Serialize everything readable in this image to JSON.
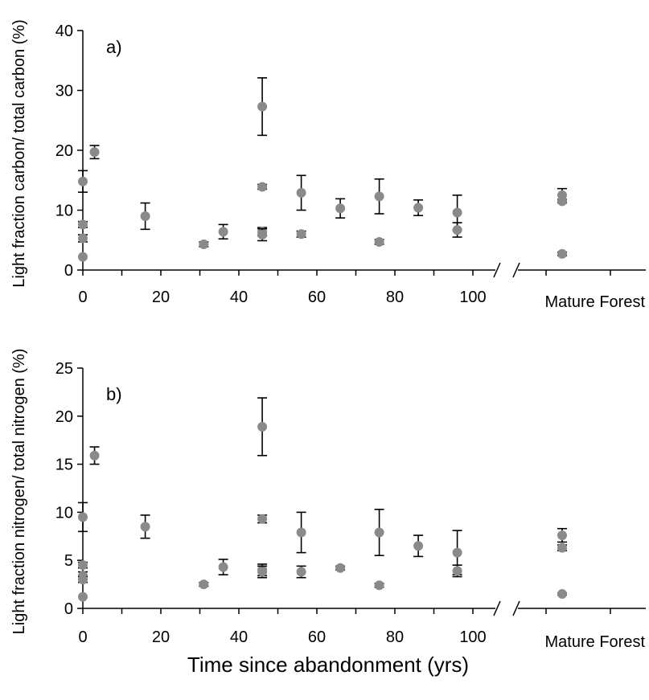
{
  "figure": {
    "xlabel": "Time since abandonment (yrs)",
    "mature_label": "Mature Forest"
  },
  "chart_data": [
    {
      "type": "scatter",
      "panel_label": "a)",
      "ylabel": "Light fraction carbon/ total carbon (%)",
      "xlim": [
        0,
        105
      ],
      "ylim": [
        0,
        40
      ],
      "x_ticks": [
        0,
        20,
        40,
        60,
        80,
        100
      ],
      "y_ticks": [
        0,
        10,
        20,
        30,
        40
      ],
      "grid": false,
      "marker_color": "#8a8a8a",
      "points": [
        {
          "x": 0,
          "y": 14.8,
          "err": 1.8
        },
        {
          "x": 0,
          "y": 7.6,
          "err": 0.5
        },
        {
          "x": 0,
          "y": 5.3,
          "err": 0.6
        },
        {
          "x": 0,
          "y": 2.2,
          "err": 0
        },
        {
          "x": 3,
          "y": 19.7,
          "err": 1.1
        },
        {
          "x": 16,
          "y": 9.0,
          "err": 2.2
        },
        {
          "x": 31,
          "y": 4.3,
          "err": 0.4
        },
        {
          "x": 36,
          "y": 6.4,
          "err": 1.2
        },
        {
          "x": 46,
          "y": 27.3,
          "err": 4.8
        },
        {
          "x": 46,
          "y": 13.9,
          "err": 0.4
        },
        {
          "x": 46,
          "y": 6.4,
          "err": 0.7
        },
        {
          "x": 46,
          "y": 5.9,
          "err": 1.0
        },
        {
          "x": 56,
          "y": 12.9,
          "err": 2.9
        },
        {
          "x": 56,
          "y": 6.0,
          "err": 0.5
        },
        {
          "x": 66,
          "y": 10.3,
          "err": 1.6
        },
        {
          "x": 76,
          "y": 12.3,
          "err": 2.9
        },
        {
          "x": 76,
          "y": 4.7,
          "err": 0.4
        },
        {
          "x": 86,
          "y": 10.4,
          "err": 1.3
        },
        {
          "x": 96,
          "y": 9.6,
          "err": 2.9
        },
        {
          "x": 96,
          "y": 6.7,
          "err": 1.2
        }
      ],
      "mature_points": [
        {
          "y": 12.5,
          "err": 1.1
        },
        {
          "y": 11.5,
          "err": 0.3
        },
        {
          "y": 2.7,
          "err": 0.3
        }
      ]
    },
    {
      "type": "scatter",
      "panel_label": "b)",
      "ylabel": "Light fraction nitrogen/ total nitrogen (%)",
      "xlim": [
        0,
        105
      ],
      "ylim": [
        0,
        25
      ],
      "x_ticks": [
        0,
        20,
        40,
        60,
        80,
        100
      ],
      "y_ticks": [
        0,
        5,
        10,
        15,
        20,
        25
      ],
      "grid": false,
      "marker_color": "#8a8a8a",
      "points": [
        {
          "x": 0,
          "y": 9.5,
          "err": 1.5
        },
        {
          "x": 0,
          "y": 4.5,
          "err": 0.3
        },
        {
          "x": 0,
          "y": 3.4,
          "err": 0.4
        },
        {
          "x": 0,
          "y": 3.0,
          "err": 0.3
        },
        {
          "x": 0,
          "y": 1.2,
          "err": 0
        },
        {
          "x": 3,
          "y": 15.9,
          "err": 0.9
        },
        {
          "x": 16,
          "y": 8.5,
          "err": 1.2
        },
        {
          "x": 31,
          "y": 2.5,
          "err": 0.2
        },
        {
          "x": 36,
          "y": 4.3,
          "err": 0.8
        },
        {
          "x": 46,
          "y": 18.9,
          "err": 3.0
        },
        {
          "x": 46,
          "y": 9.3,
          "err": 0.4
        },
        {
          "x": 46,
          "y": 4.0,
          "err": 0.6
        },
        {
          "x": 46,
          "y": 3.8,
          "err": 0.6
        },
        {
          "x": 56,
          "y": 7.9,
          "err": 2.1
        },
        {
          "x": 56,
          "y": 3.8,
          "err": 0.6
        },
        {
          "x": 66,
          "y": 4.2,
          "err": 0.2
        },
        {
          "x": 76,
          "y": 7.9,
          "err": 2.4
        },
        {
          "x": 76,
          "y": 2.4,
          "err": 0.2
        },
        {
          "x": 86,
          "y": 6.5,
          "err": 1.1
        },
        {
          "x": 96,
          "y": 5.8,
          "err": 2.3
        },
        {
          "x": 96,
          "y": 3.9,
          "err": 0.6
        }
      ],
      "mature_points": [
        {
          "y": 7.6,
          "err": 0.7
        },
        {
          "y": 6.3,
          "err": 0.3
        },
        {
          "y": 1.5,
          "err": 0.1
        }
      ]
    }
  ]
}
